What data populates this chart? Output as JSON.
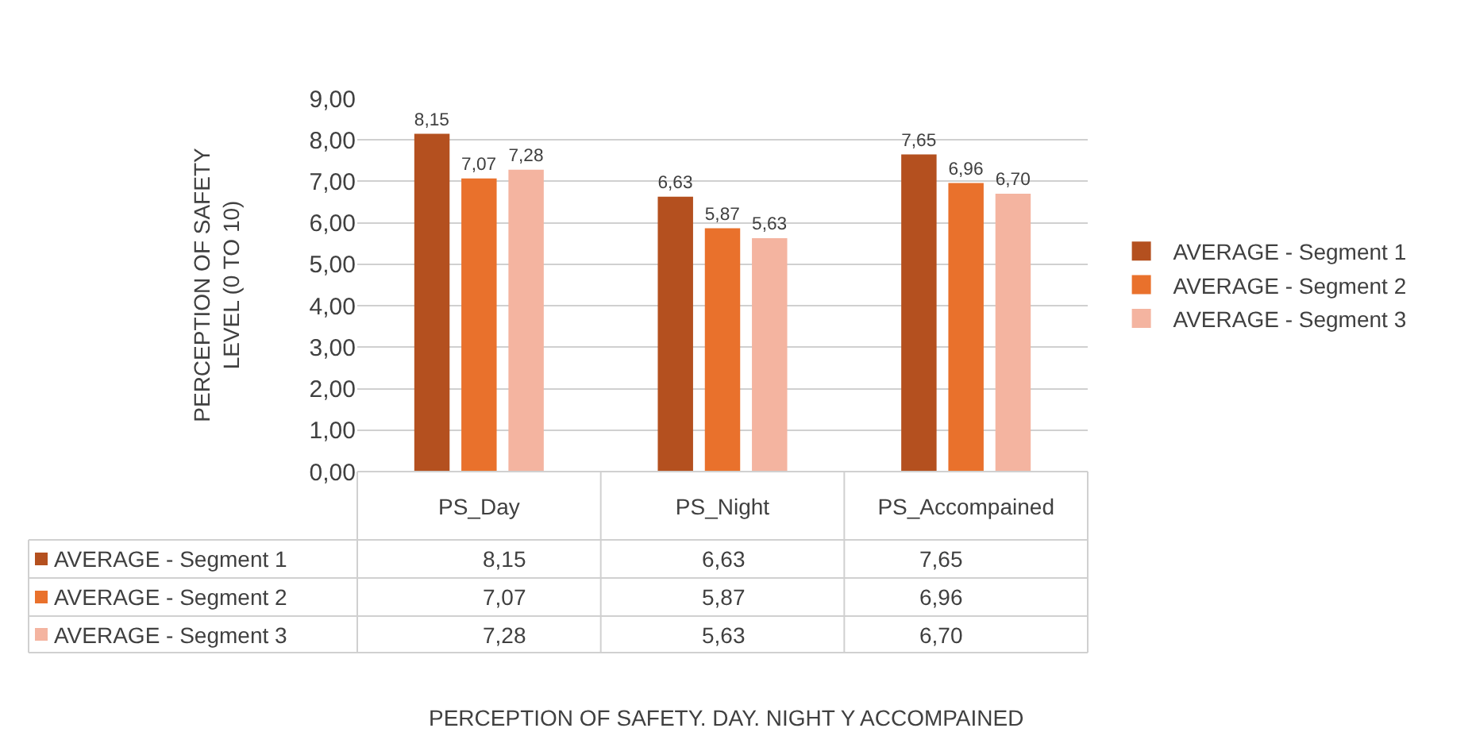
{
  "chart_data": {
    "type": "bar",
    "categories": [
      "PS_Day",
      "PS_Night",
      "PS_Accompained"
    ],
    "series": [
      {
        "name": "AVERAGE - Segment 1",
        "color": "#b4501f",
        "values": [
          8.15,
          6.63,
          7.65
        ],
        "value_labels": [
          "8,15",
          "6,63",
          "7,65"
        ]
      },
      {
        "name": "AVERAGE - Segment 2",
        "color": "#e9712c",
        "values": [
          7.07,
          5.87,
          6.96
        ],
        "value_labels": [
          "7,07",
          "5,87",
          "6,96"
        ]
      },
      {
        "name": "AVERAGE - Segment 3",
        "color": "#f4b4a0",
        "values": [
          7.28,
          5.63,
          6.7
        ],
        "value_labels": [
          "7,28",
          "5,63",
          "6,70"
        ]
      }
    ],
    "ylim": [
      0,
      9
    ],
    "yticks": [
      {
        "value": 0,
        "label": "0,00"
      },
      {
        "value": 1,
        "label": "1,00"
      },
      {
        "value": 2,
        "label": "2,00"
      },
      {
        "value": 3,
        "label": "3,00"
      },
      {
        "value": 4,
        "label": "4,00"
      },
      {
        "value": 5,
        "label": "5,00"
      },
      {
        "value": 6,
        "label": "6,00"
      },
      {
        "value": 7,
        "label": "7,00"
      },
      {
        "value": 8,
        "label": "8,00"
      },
      {
        "value": 9,
        "label": "9,00"
      }
    ],
    "ylabel": "PERCEPTION OF SAFETY\nLEVEL (0 TO 10)",
    "annotations": [
      "PERCEPTION OF SAFETY. DAY. NIGHT Y ACCOMPAINED"
    ],
    "grid": "y",
    "legend": "right"
  }
}
